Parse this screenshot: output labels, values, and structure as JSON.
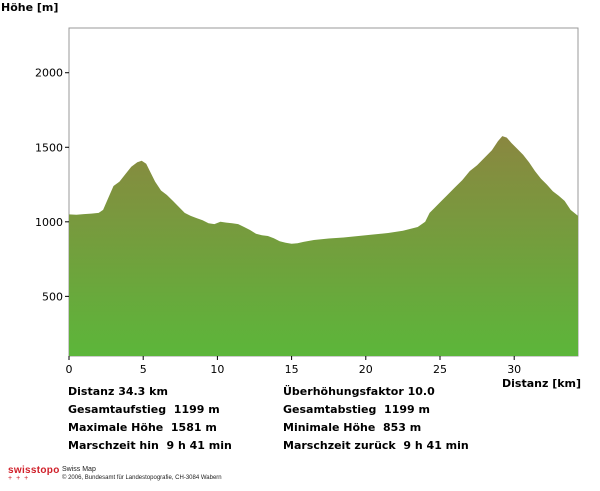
{
  "chart_data": {
    "type": "area",
    "ylabel": "Höhe [m]",
    "xlabel": "Distanz [km]",
    "xlim": [
      0,
      34.3
    ],
    "ylim": [
      100,
      2300
    ],
    "x_ticks": [
      0,
      5,
      10,
      15,
      20,
      25,
      30
    ],
    "y_ticks": [
      500,
      1000,
      1500,
      2000
    ],
    "grid": false,
    "gradient_colors": {
      "top": "#8a8740",
      "bottom": "#5cb63a"
    },
    "profile": {
      "x": [
        0,
        0.5,
        1,
        1.5,
        2,
        2.3,
        2.6,
        3.0,
        3.4,
        3.8,
        4.2,
        4.6,
        4.9,
        5.2,
        5.5,
        5.8,
        6.2,
        6.6,
        7.0,
        7.4,
        7.8,
        8.2,
        8.6,
        9.0,
        9.4,
        9.8,
        10.2,
        10.6,
        11.0,
        11.4,
        11.8,
        12.2,
        12.6,
        13.0,
        13.4,
        13.8,
        14.2,
        14.6,
        15.0,
        15.4,
        15.8,
        16.5,
        17.5,
        18.5,
        19.5,
        20.5,
        21.5,
        22.5,
        23.5,
        24.0,
        24.3,
        24.6,
        25.0,
        25.5,
        26.0,
        26.5,
        27.0,
        27.5,
        28.0,
        28.5,
        28.9,
        29.2,
        29.5,
        29.8,
        30.2,
        30.6,
        31.0,
        31.4,
        31.8,
        32.2,
        32.6,
        33.0,
        33.4,
        33.8,
        34.3
      ],
      "y": [
        1050,
        1048,
        1052,
        1055,
        1060,
        1080,
        1150,
        1240,
        1270,
        1320,
        1370,
        1400,
        1410,
        1390,
        1330,
        1270,
        1210,
        1180,
        1140,
        1100,
        1060,
        1040,
        1025,
        1010,
        990,
        985,
        1000,
        995,
        990,
        985,
        965,
        945,
        920,
        910,
        905,
        890,
        870,
        860,
        853,
        856,
        865,
        878,
        888,
        895,
        905,
        915,
        925,
        940,
        965,
        1000,
        1060,
        1090,
        1130,
        1180,
        1230,
        1280,
        1340,
        1380,
        1430,
        1480,
        1540,
        1575,
        1565,
        1530,
        1490,
        1450,
        1400,
        1340,
        1290,
        1250,
        1205,
        1175,
        1140,
        1080,
        1040
      ]
    }
  },
  "info": {
    "distanz": "Distanz 34.3 km",
    "ueberhoehung": "Überhöhungsfaktor 10.0",
    "gesamtaufstieg": "Gesamtaufstieg  1199 m",
    "gesamtabstieg": "Gesamtabstieg  1199 m",
    "maxhoehe": "Maximale Höhe  1581 m",
    "minhoehe": "Minimale Höhe  853 m",
    "marsch_hin": "Marschzeit hin  9 h 41 min",
    "marsch_zurueck": "Marschzeit zurück  9 h 41 min"
  },
  "footer": {
    "brand": "swisstopo",
    "product": "Swiss Map",
    "copyright": "© 2006, Bundesamt für Landestopografie, CH-3084 Wabern"
  }
}
